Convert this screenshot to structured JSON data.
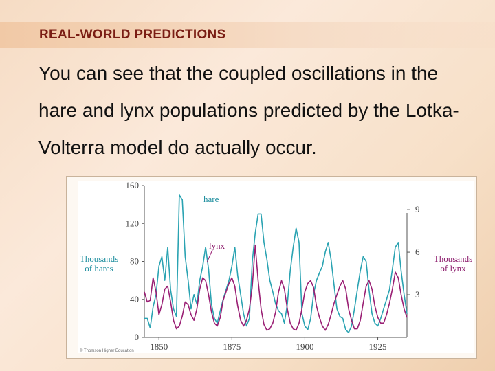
{
  "slide": {
    "title": "REAL-WORLD PREDICTIONS",
    "body": "You can see that the coupled oscillations in the hare and lynx populations predicted by the Lotka-Volterra model do actually occur."
  },
  "colors": {
    "hare": "#2aa3b2",
    "lynx": "#9a1f74",
    "title": "#7a1d14"
  },
  "chart_data": {
    "type": "line",
    "xlabel": "",
    "ylabel_left": [
      "Thousands",
      "of hares"
    ],
    "ylabel_right": [
      "Thousands",
      "of lynx"
    ],
    "x_ticks": [
      1850,
      1875,
      1900,
      1925
    ],
    "y_ticks_left": [
      0,
      40,
      80,
      120,
      160
    ],
    "y_ticks_right": [
      3,
      6,
      9
    ],
    "xlim": [
      1845,
      1935
    ],
    "ylim_left": [
      0,
      160
    ],
    "ylim_right": [
      0,
      10.7
    ],
    "grid": false,
    "copyright": "© Thomson Higher Education",
    "series": [
      {
        "name": "hare",
        "axis": "left",
        "x": [
          1845,
          1846,
          1847,
          1848,
          1849,
          1850,
          1851,
          1852,
          1853,
          1854,
          1855,
          1856,
          1857,
          1858,
          1859,
          1860,
          1861,
          1862,
          1863,
          1864,
          1865,
          1866,
          1867,
          1868,
          1869,
          1870,
          1871,
          1872,
          1873,
          1874,
          1875,
          1876,
          1877,
          1878,
          1879,
          1880,
          1881,
          1882,
          1883,
          1884,
          1885,
          1886,
          1887,
          1888,
          1889,
          1890,
          1891,
          1892,
          1893,
          1894,
          1895,
          1896,
          1897,
          1898,
          1899,
          1900,
          1901,
          1902,
          1903,
          1904,
          1905,
          1906,
          1907,
          1908,
          1909,
          1910,
          1911,
          1912,
          1913,
          1914,
          1915,
          1916,
          1917,
          1918,
          1919,
          1920,
          1921,
          1922,
          1923,
          1924,
          1925,
          1926,
          1927,
          1928,
          1929,
          1930,
          1931,
          1932,
          1933,
          1934,
          1935
        ],
        "y": [
          20,
          20,
          10,
          32,
          45,
          75,
          85,
          60,
          95,
          50,
          30,
          22,
          150,
          145,
          85,
          60,
          30,
          45,
          35,
          60,
          75,
          95,
          72,
          35,
          20,
          15,
          28,
          40,
          50,
          60,
          75,
          95,
          65,
          45,
          25,
          12,
          20,
          80,
          110,
          130,
          130,
          100,
          82,
          60,
          48,
          35,
          28,
          25,
          15,
          35,
          70,
          95,
          115,
          100,
          25,
          12,
          8,
          20,
          46,
          60,
          68,
          75,
          90,
          100,
          82,
          55,
          30,
          22,
          20,
          8,
          5,
          12,
          30,
          50,
          70,
          85,
          80,
          50,
          25,
          15,
          12,
          20,
          30,
          40,
          50,
          72,
          95,
          100,
          70,
          45,
          25
        ]
      },
      {
        "name": "lynx",
        "axis": "right",
        "x": [
          1845,
          1846,
          1847,
          1848,
          1849,
          1850,
          1851,
          1852,
          1853,
          1854,
          1855,
          1856,
          1857,
          1858,
          1859,
          1860,
          1861,
          1862,
          1863,
          1864,
          1865,
          1866,
          1867,
          1868,
          1869,
          1870,
          1871,
          1872,
          1873,
          1874,
          1875,
          1876,
          1877,
          1878,
          1879,
          1880,
          1881,
          1882,
          1883,
          1884,
          1885,
          1886,
          1887,
          1888,
          1889,
          1890,
          1891,
          1892,
          1893,
          1894,
          1895,
          1896,
          1897,
          1898,
          1899,
          1900,
          1901,
          1902,
          1903,
          1904,
          1905,
          1906,
          1907,
          1908,
          1909,
          1910,
          1911,
          1912,
          1913,
          1914,
          1915,
          1916,
          1917,
          1918,
          1919,
          1920,
          1921,
          1922,
          1923,
          1924,
          1925,
          1926,
          1927,
          1928,
          1929,
          1930,
          1931,
          1932,
          1933,
          1934,
          1935
        ],
        "y": [
          3.2,
          2.5,
          2.6,
          4.2,
          3.2,
          1.6,
          2.3,
          3.4,
          3.6,
          2.5,
          1.2,
          0.6,
          0.8,
          1.5,
          2.5,
          2.3,
          1.6,
          1.2,
          2.0,
          3.4,
          4.2,
          4.0,
          3.0,
          1.8,
          1.0,
          0.8,
          1.4,
          2.6,
          3.2,
          3.8,
          4.2,
          3.6,
          2.2,
          1.2,
          0.8,
          1.2,
          2.0,
          3.6,
          6.5,
          4.0,
          2.0,
          0.9,
          0.5,
          0.6,
          1.0,
          1.8,
          3.2,
          4.0,
          3.4,
          2.0,
          1.0,
          0.6,
          0.5,
          1.0,
          2.0,
          3.2,
          3.8,
          4.0,
          3.5,
          2.2,
          1.4,
          0.8,
          0.5,
          0.9,
          1.6,
          2.4,
          3.0,
          3.6,
          4.0,
          3.4,
          2.0,
          1.2,
          0.6,
          0.6,
          1.2,
          2.4,
          3.6,
          4.0,
          3.4,
          2.2,
          1.4,
          1.0,
          1.0,
          1.6,
          2.4,
          3.4,
          4.6,
          4.2,
          3.0,
          2.0,
          1.4
        ]
      }
    ]
  }
}
